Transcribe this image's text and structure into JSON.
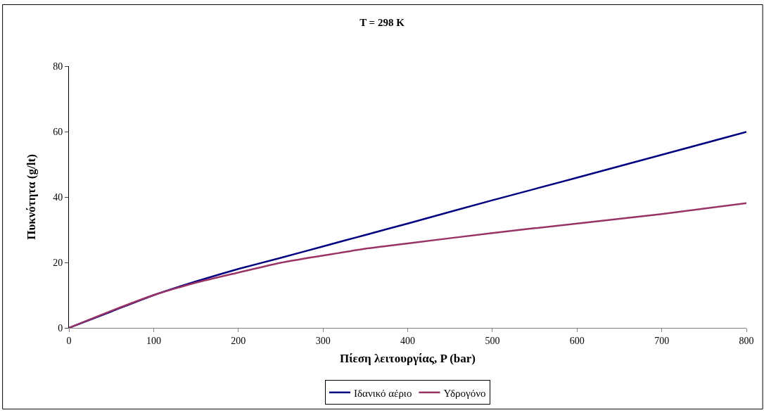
{
  "chart_data": {
    "type": "line",
    "title": "T = 298 K",
    "xlabel": "Πίεση λειτουργίας, P (bar)",
    "ylabel": "Πυκνότητα (g/lt)",
    "x": [
      0,
      50,
      100,
      150,
      200,
      250,
      300,
      350,
      400,
      500,
      600,
      700,
      800
    ],
    "series": [
      {
        "name": "Ιδανικό αέριο",
        "color": "#000080",
        "values": [
          0,
          5,
          10,
          14.2,
          18,
          21.4,
          24.9,
          28.4,
          31.9,
          39,
          45.9,
          52.9,
          59.9
        ]
      },
      {
        "name": "Υδρογόνο",
        "color": "#993366",
        "values": [
          0,
          5.2,
          10,
          13.8,
          16.9,
          19.9,
          22.1,
          24.2,
          25.8,
          29,
          31.9,
          34.8,
          38.1
        ]
      }
    ],
    "xlim": [
      0,
      800
    ],
    "xticks": [
      0,
      100,
      200,
      300,
      400,
      500,
      600,
      700,
      800
    ],
    "ylim": [
      0,
      80
    ],
    "yticks": [
      0,
      20,
      40,
      60,
      80
    ],
    "grid": false,
    "legend": "bottom",
    "marker": "none",
    "line_style": "solid"
  }
}
